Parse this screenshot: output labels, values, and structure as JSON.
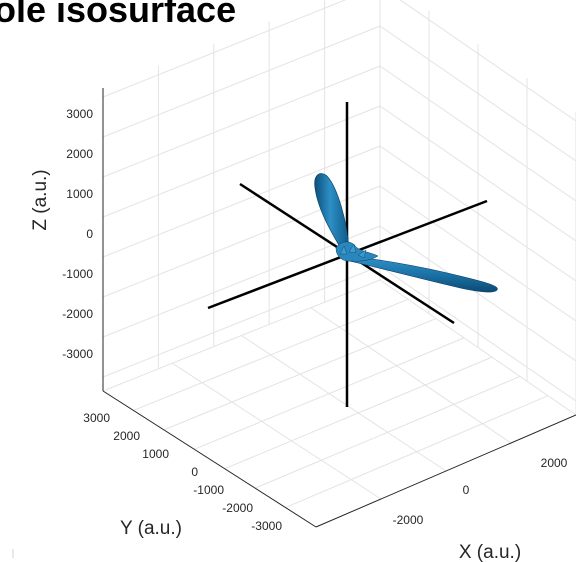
{
  "figure": {
    "title": "ole isosurface"
  },
  "chart_data": {
    "type": "isosurface-3d",
    "title": "ole isosurface",
    "xlabel": "X (a.u.)",
    "ylabel": "Y (a.u.)",
    "zlabel": "Z (a.u.)",
    "x_ticks": [
      "-2000",
      "0",
      "2000"
    ],
    "y_ticks": [
      "3000",
      "2000",
      "1000",
      "0",
      "-1000",
      "-2000",
      "-3000"
    ],
    "z_ticks": [
      "3000",
      "2000",
      "1000",
      "0",
      "-1000",
      "-2000",
      "-3000"
    ],
    "grid": true,
    "surface_color": "#1f77b4",
    "lobes": [
      {
        "name": "upper-lobe",
        "direction": "up-left"
      },
      {
        "name": "right-lobe",
        "direction": "down-right"
      }
    ]
  }
}
